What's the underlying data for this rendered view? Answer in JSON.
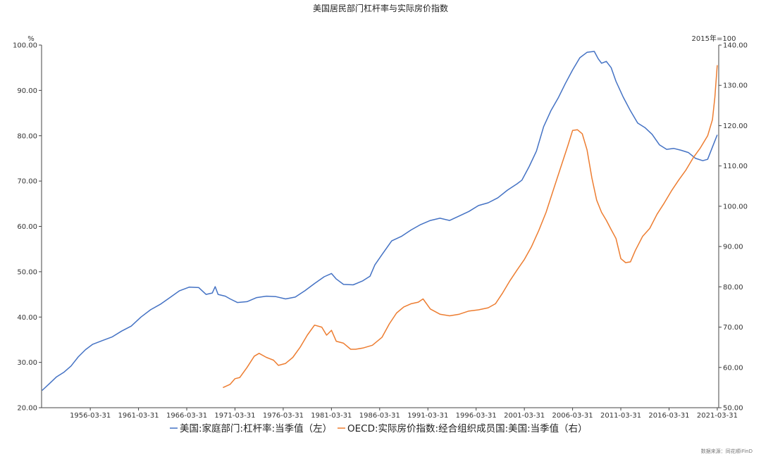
{
  "chart_data": {
    "type": "line",
    "title": "美国居民部门杠杆率与实际房价指数",
    "y_left_unit": "%",
    "y_right_unit": "2015年=100",
    "ylim_left": [
      20,
      100
    ],
    "ylim_right": [
      50,
      140
    ],
    "y_left_ticks": [
      "20.00",
      "30.00",
      "40.00",
      "50.00",
      "60.00",
      "70.00",
      "80.00",
      "90.00",
      "100.00"
    ],
    "y_right_ticks": [
      "50.00",
      "60.00",
      "70.00",
      "80.00",
      "90.00",
      "100.00",
      "110.00",
      "120.00",
      "130.00",
      "140.00"
    ],
    "x_ticks": [
      {
        "label": "1956-03-31",
        "t": 1956.25
      },
      {
        "label": "1961-03-31",
        "t": 1961.25
      },
      {
        "label": "1966-03-31",
        "t": 1966.25
      },
      {
        "label": "1971-03-31",
        "t": 1971.25
      },
      {
        "label": "1976-03-31",
        "t": 1976.25
      },
      {
        "label": "1981-03-31",
        "t": 1981.25
      },
      {
        "label": "1986-03-31",
        "t": 1986.25
      },
      {
        "label": "1991-03-31",
        "t": 1991.25
      },
      {
        "label": "1996-03-31",
        "t": 1996.25
      },
      {
        "label": "2001-03-31",
        "t": 2001.25
      },
      {
        "label": "2006-03-31",
        "t": 2006.25
      },
      {
        "label": "2011-03-31",
        "t": 2011.25
      },
      {
        "label": "2016-03-31",
        "t": 2016.25
      },
      {
        "label": "2021-03-31",
        "t": 2021.25
      }
    ],
    "xlim": [
      1951.2,
      2021.4
    ],
    "grid": false,
    "legend_position": "bottom-center",
    "colors": {
      "leverage": "#4472c4",
      "house_price": "#ed7d31"
    },
    "series": [
      {
        "name": "美国:家庭部门:杠杆率:当季值（左）",
        "axis": "left",
        "points": [
          [
            1951.25,
            23.8
          ],
          [
            1952.0,
            25.3
          ],
          [
            1952.75,
            26.8
          ],
          [
            1953.5,
            27.8
          ],
          [
            1954.25,
            29.2
          ],
          [
            1955.0,
            31.2
          ],
          [
            1955.75,
            32.8
          ],
          [
            1956.5,
            34.0
          ],
          [
            1957.5,
            34.8
          ],
          [
            1958.5,
            35.6
          ],
          [
            1959.5,
            36.9
          ],
          [
            1960.5,
            38.0
          ],
          [
            1961.5,
            40.0
          ],
          [
            1962.5,
            41.6
          ],
          [
            1963.5,
            42.8
          ],
          [
            1964.5,
            44.3
          ],
          [
            1965.5,
            45.8
          ],
          [
            1966.5,
            46.6
          ],
          [
            1967.5,
            46.5
          ],
          [
            1968.25,
            45.0
          ],
          [
            1968.9,
            45.3
          ],
          [
            1969.2,
            46.7
          ],
          [
            1969.5,
            45.0
          ],
          [
            1970.25,
            44.6
          ],
          [
            1970.75,
            44.0
          ],
          [
            1971.5,
            43.2
          ],
          [
            1972.5,
            43.4
          ],
          [
            1973.5,
            44.3
          ],
          [
            1974.5,
            44.6
          ],
          [
            1975.5,
            44.5
          ],
          [
            1976.5,
            44.0
          ],
          [
            1977.5,
            44.4
          ],
          [
            1978.5,
            45.8
          ],
          [
            1979.5,
            47.4
          ],
          [
            1980.5,
            48.9
          ],
          [
            1981.25,
            49.6
          ],
          [
            1981.75,
            48.4
          ],
          [
            1982.5,
            47.2
          ],
          [
            1983.5,
            47.1
          ],
          [
            1984.5,
            48.0
          ],
          [
            1985.25,
            49.0
          ],
          [
            1985.75,
            51.5
          ],
          [
            1986.5,
            53.8
          ],
          [
            1987.5,
            56.8
          ],
          [
            1988.5,
            57.8
          ],
          [
            1989.5,
            59.2
          ],
          [
            1990.5,
            60.4
          ],
          [
            1991.5,
            61.3
          ],
          [
            1992.5,
            61.8
          ],
          [
            1993.5,
            61.3
          ],
          [
            1994.5,
            62.3
          ],
          [
            1995.5,
            63.3
          ],
          [
            1996.5,
            64.6
          ],
          [
            1997.5,
            65.2
          ],
          [
            1998.5,
            66.3
          ],
          [
            1999.5,
            68.0
          ],
          [
            2000.5,
            69.4
          ],
          [
            2001.0,
            70.2
          ],
          [
            2001.75,
            73.2
          ],
          [
            2002.5,
            76.6
          ],
          [
            2003.25,
            82.0
          ],
          [
            2004.0,
            85.5
          ],
          [
            2004.75,
            88.3
          ],
          [
            2005.5,
            91.5
          ],
          [
            2006.25,
            94.5
          ],
          [
            2007.0,
            97.2
          ],
          [
            2007.75,
            98.4
          ],
          [
            2008.5,
            98.6
          ],
          [
            2008.9,
            97.0
          ],
          [
            2009.25,
            96.0
          ],
          [
            2009.75,
            96.4
          ],
          [
            2010.25,
            95.0
          ],
          [
            2010.75,
            92.0
          ],
          [
            2011.5,
            88.5
          ],
          [
            2012.25,
            85.5
          ],
          [
            2013.0,
            82.8
          ],
          [
            2013.75,
            81.8
          ],
          [
            2014.5,
            80.3
          ],
          [
            2015.25,
            78.0
          ],
          [
            2016.0,
            77.0
          ],
          [
            2016.75,
            77.2
          ],
          [
            2017.5,
            76.8
          ],
          [
            2018.25,
            76.3
          ],
          [
            2019.0,
            75.0
          ],
          [
            2019.75,
            74.5
          ],
          [
            2020.25,
            74.8
          ],
          [
            2020.75,
            77.5
          ],
          [
            2021.25,
            80.2
          ]
        ]
      },
      {
        "name": "OECD:实际房价指数:经合组织成员国:美国:当季值（右）",
        "axis": "right",
        "points": [
          [
            1970.0,
            55.0
          ],
          [
            1970.75,
            55.8
          ],
          [
            1971.25,
            57.2
          ],
          [
            1971.75,
            57.5
          ],
          [
            1972.5,
            60.0
          ],
          [
            1973.25,
            62.8
          ],
          [
            1973.75,
            63.5
          ],
          [
            1974.5,
            62.5
          ],
          [
            1975.25,
            61.8
          ],
          [
            1975.75,
            60.5
          ],
          [
            1976.5,
            61.0
          ],
          [
            1977.25,
            62.5
          ],
          [
            1978.0,
            65.0
          ],
          [
            1978.75,
            68.0
          ],
          [
            1979.5,
            70.5
          ],
          [
            1980.25,
            70.0
          ],
          [
            1980.75,
            68.0
          ],
          [
            1981.25,
            69.2
          ],
          [
            1981.75,
            66.5
          ],
          [
            1982.5,
            66.0
          ],
          [
            1983.25,
            64.5
          ],
          [
            1983.75,
            64.5
          ],
          [
            1984.5,
            64.8
          ],
          [
            1985.5,
            65.5
          ],
          [
            1986.5,
            67.5
          ],
          [
            1987.25,
            70.8
          ],
          [
            1988.0,
            73.5
          ],
          [
            1988.75,
            75.0
          ],
          [
            1989.5,
            75.8
          ],
          [
            1990.25,
            76.2
          ],
          [
            1990.75,
            77.0
          ],
          [
            1991.5,
            74.5
          ],
          [
            1992.5,
            73.2
          ],
          [
            1993.5,
            72.8
          ],
          [
            1994.5,
            73.2
          ],
          [
            1995.5,
            74.0
          ],
          [
            1996.5,
            74.3
          ],
          [
            1997.5,
            74.8
          ],
          [
            1998.25,
            75.8
          ],
          [
            1999.0,
            78.5
          ],
          [
            1999.75,
            81.5
          ],
          [
            2000.5,
            84.2
          ],
          [
            2001.25,
            86.8
          ],
          [
            2002.0,
            90.0
          ],
          [
            2002.75,
            94.0
          ],
          [
            2003.5,
            98.5
          ],
          [
            2004.25,
            104.0
          ],
          [
            2005.0,
            109.5
          ],
          [
            2005.75,
            115.0
          ],
          [
            2006.25,
            118.8
          ],
          [
            2006.75,
            119.0
          ],
          [
            2007.25,
            118.0
          ],
          [
            2007.75,
            114.0
          ],
          [
            2008.25,
            107.0
          ],
          [
            2008.75,
            101.5
          ],
          [
            2009.25,
            98.5
          ],
          [
            2009.75,
            96.5
          ],
          [
            2010.25,
            94.2
          ],
          [
            2010.75,
            92.0
          ],
          [
            2011.25,
            87.0
          ],
          [
            2011.75,
            86.0
          ],
          [
            2012.25,
            86.2
          ],
          [
            2012.75,
            89.0
          ],
          [
            2013.5,
            92.5
          ],
          [
            2014.25,
            94.5
          ],
          [
            2015.0,
            98.0
          ],
          [
            2015.75,
            100.8
          ],
          [
            2016.5,
            103.8
          ],
          [
            2017.25,
            106.5
          ],
          [
            2018.0,
            109.0
          ],
          [
            2018.75,
            112.0
          ],
          [
            2019.5,
            114.5
          ],
          [
            2020.25,
            117.5
          ],
          [
            2020.75,
            121.5
          ],
          [
            2021.0,
            127.0
          ],
          [
            2021.25,
            135.0
          ]
        ]
      }
    ]
  },
  "footer": {
    "source": "数据来源：同花顺iFinD"
  }
}
